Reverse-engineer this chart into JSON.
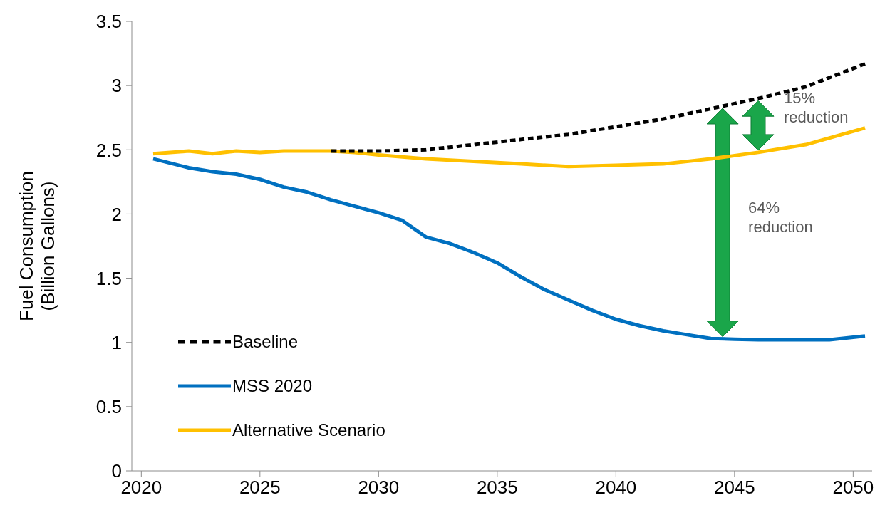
{
  "chart_data": {
    "type": "line",
    "ylabel": "Fuel Consumption (Billion Gallons)",
    "xlim": [
      2019.6,
      2050.8
    ],
    "xticks": [
      2020,
      2025,
      2030,
      2035,
      2040,
      2045,
      2050
    ],
    "ylim": [
      0,
      3.5
    ],
    "yticks": [
      0,
      0.5,
      1,
      1.5,
      2,
      2.5,
      3,
      3.5
    ],
    "grid": false,
    "legend": "bottom left",
    "marker": "none",
    "series": [
      {
        "name": "Baseline",
        "color": "#000000",
        "line_style": "dashed",
        "x": [
          2028,
          2030,
          2032,
          2034,
          2036,
          2038,
          2040,
          2042,
          2044,
          2046,
          2048,
          2050.5
        ],
        "values": [
          2.49,
          2.49,
          2.5,
          2.54,
          2.58,
          2.62,
          2.68,
          2.74,
          2.82,
          2.9,
          2.99,
          3.17
        ]
      },
      {
        "name": "MSS 2020",
        "color": "#0070c0",
        "line_style": "solid",
        "x": [
          2020.5,
          2022,
          2023,
          2024,
          2025,
          2026,
          2027,
          2028,
          2029,
          2030,
          2031,
          2032,
          2033,
          2034,
          2035,
          2036,
          2037,
          2038,
          2039,
          2040,
          2041,
          2042,
          2043,
          2044,
          2045,
          2046,
          2047,
          2048,
          2049,
          2050.5
        ],
        "values": [
          2.43,
          2.36,
          2.33,
          2.31,
          2.27,
          2.21,
          2.17,
          2.11,
          2.06,
          2.01,
          1.95,
          1.82,
          1.77,
          1.7,
          1.62,
          1.51,
          1.41,
          1.33,
          1.25,
          1.18,
          1.13,
          1.09,
          1.06,
          1.03,
          1.025,
          1.02,
          1.02,
          1.02,
          1.02,
          1.05
        ]
      },
      {
        "name": "Alternative Scenario",
        "color": "#ffc000",
        "line_style": "solid",
        "x": [
          2020.5,
          2022,
          2023,
          2024,
          2025,
          2026,
          2028,
          2029,
          2030,
          2032,
          2034,
          2036,
          2038,
          2040,
          2042,
          2044,
          2046,
          2048,
          2050.5
        ],
        "values": [
          2.47,
          2.49,
          2.47,
          2.49,
          2.48,
          2.49,
          2.49,
          2.48,
          2.46,
          2.43,
          2.41,
          2.39,
          2.37,
          2.38,
          2.39,
          2.43,
          2.48,
          2.54,
          2.67
        ]
      }
    ],
    "annotations": [
      "15% reduction",
      "64% reduction"
    ]
  }
}
